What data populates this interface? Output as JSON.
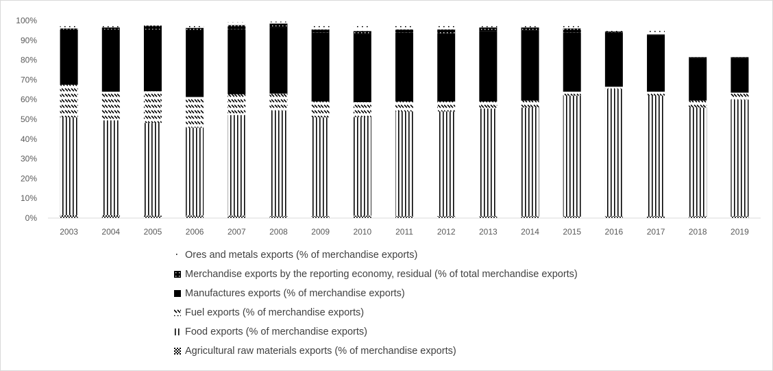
{
  "chart_data": {
    "type": "bar",
    "stacked": true,
    "title": "",
    "xlabel": "",
    "ylabel": "",
    "ylim": [
      0,
      100
    ],
    "yticks": [
      "0%",
      "10%",
      "20%",
      "30%",
      "40%",
      "50%",
      "60%",
      "70%",
      "80%",
      "90%",
      "100%"
    ],
    "grid": false,
    "legend_position": "bottom",
    "categories": [
      "2003",
      "2004",
      "2005",
      "2006",
      "2007",
      "2008",
      "2009",
      "2010",
      "2011",
      "2012",
      "2013",
      "2014",
      "2015",
      "2016",
      "2017",
      "2018",
      "2019"
    ],
    "series": [
      {
        "name": "Agricultural raw materials exports (% of merchandise exports)",
        "pattern": "checker",
        "color": "#000000",
        "values": [
          1.5,
          1.5,
          1.2,
          1.3,
          1.2,
          1.0,
          1.0,
          1.2,
          1.0,
          1.0,
          1.0,
          1.0,
          1.0,
          1.0,
          1.0,
          1.0,
          1.0
        ]
      },
      {
        "name": "Food exports (% of merchandise exports)",
        "pattern": "vertical-lines",
        "color": "#000000",
        "values": [
          49.5,
          48.0,
          47.0,
          44.5,
          51.0,
          53.5,
          50.0,
          50.0,
          53.0,
          53.0,
          54.5,
          55.0,
          61.0,
          64.5,
          61.0,
          55.0,
          59.0
        ]
      },
      {
        "name": "Fuel exports (% of merchandise exports)",
        "pattern": "wavy-lines",
        "color": "#000000",
        "values": [
          16.5,
          14.5,
          16.0,
          15.5,
          10.5,
          8.5,
          8.0,
          7.5,
          5.0,
          5.0,
          3.5,
          3.5,
          2.0,
          1.0,
          2.0,
          3.5,
          3.5
        ]
      },
      {
        "name": "Manufactures exports (% of merchandise exports)",
        "pattern": "solid",
        "color": "#000000",
        "values": [
          28.0,
          31.5,
          31.3,
          34.0,
          33.0,
          33.5,
          35.0,
          34.5,
          35.0,
          34.5,
          35.5,
          35.5,
          30.0,
          27.5,
          28.5,
          21.5,
          17.5
        ]
      },
      {
        "name": "Merchandise exports by the reporting economy, residual (% of total merchandise exports)",
        "pattern": "dotted-dark",
        "color": "#000000",
        "values": [
          0.5,
          1.0,
          2.0,
          1.0,
          2.0,
          2.0,
          1.5,
          1.5,
          1.5,
          2.0,
          2.0,
          1.5,
          2.0,
          0.5,
          0.5,
          0.5,
          0.5
        ]
      },
      {
        "name": "Ores and metals exports (% of merchandise exports)",
        "pattern": "sparse-dots",
        "color": "#000000",
        "values": [
          3.0,
          2.5,
          1.5,
          2.5,
          1.5,
          1.0,
          2.5,
          4.0,
          3.0,
          3.5,
          2.5,
          2.0,
          2.5,
          2.0,
          3.0,
          0.0,
          0.0
        ]
      }
    ]
  },
  "legend": {
    "items": [
      {
        "label": "Ores and metals exports (% of merchandise exports)",
        "pattern": "sparse-dots"
      },
      {
        "label": "Merchandise exports by the reporting economy, residual (% of total merchandise exports)",
        "pattern": "dotted-dark"
      },
      {
        "label": "Manufactures exports (% of merchandise exports)",
        "pattern": "solid"
      },
      {
        "label": "Fuel exports (% of merchandise exports)",
        "pattern": "wavy-lines"
      },
      {
        "label": "Food exports (% of merchandise exports)",
        "pattern": "vertical-lines"
      },
      {
        "label": "Agricultural raw materials exports (% of merchandise exports)",
        "pattern": "checker"
      }
    ]
  }
}
